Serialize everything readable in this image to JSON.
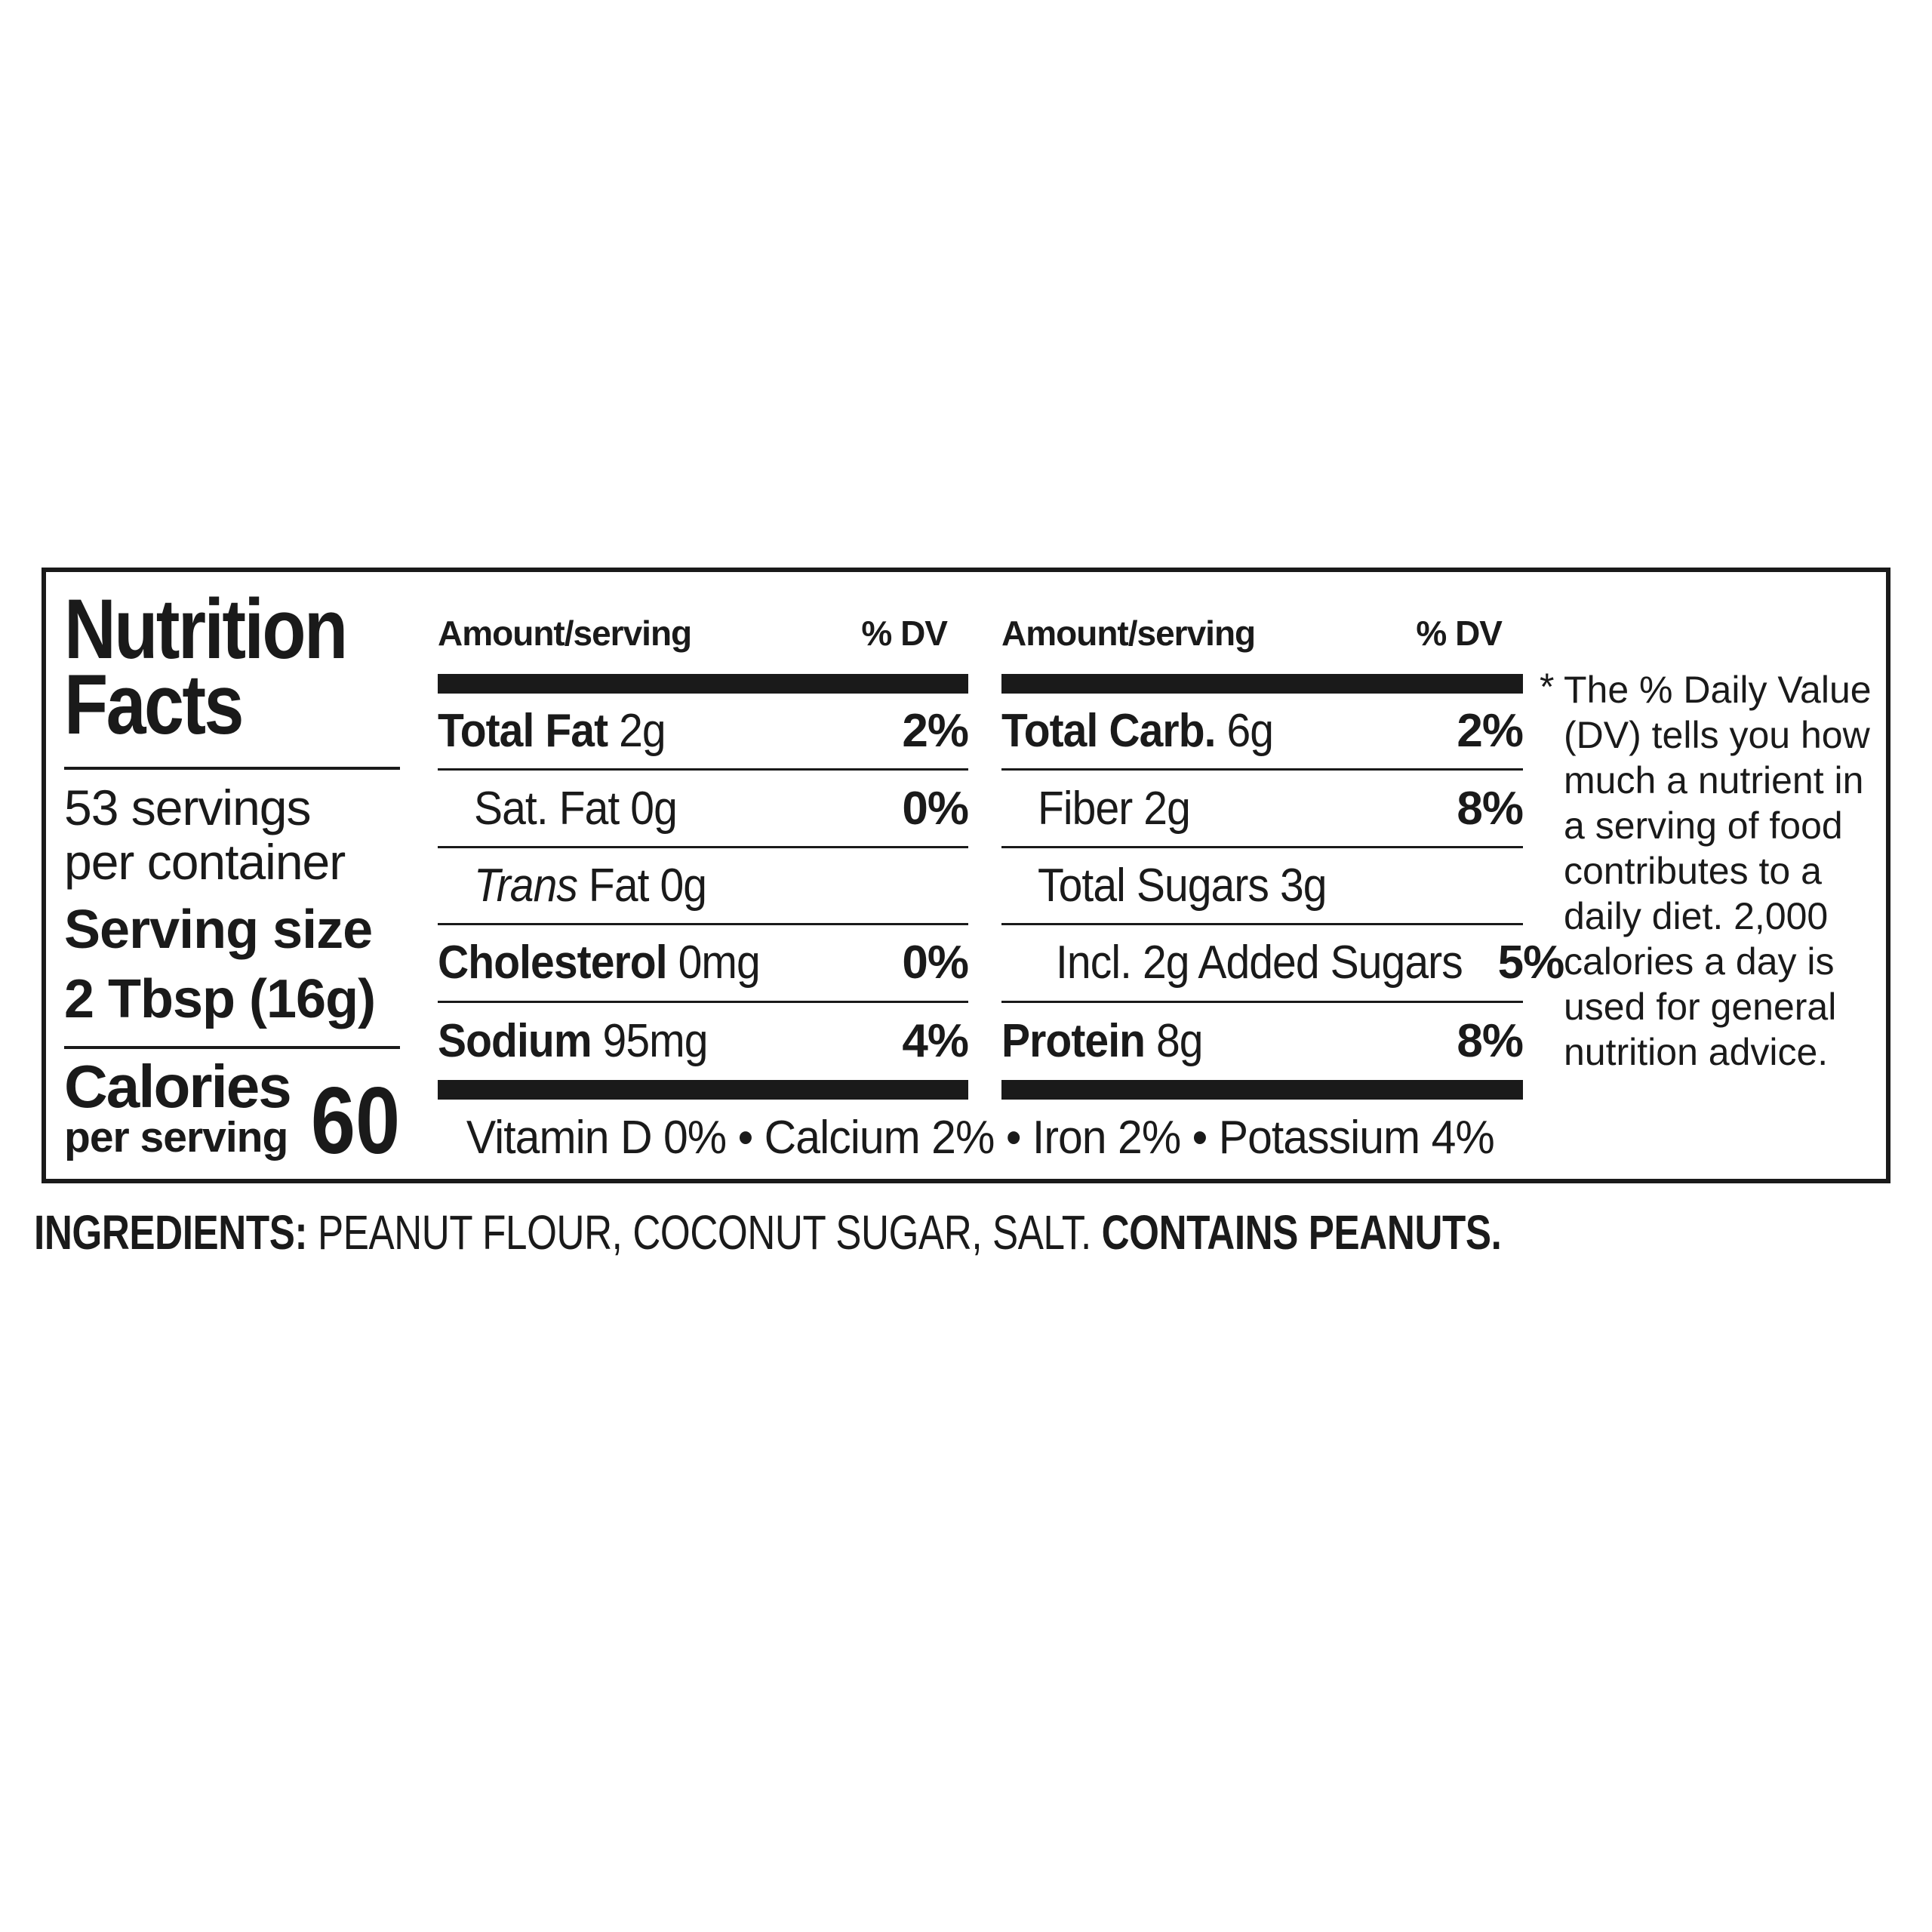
{
  "label": {
    "title_lines": [
      "Nutrition",
      "Facts"
    ],
    "servings_lines": [
      "53 servings",
      "per container"
    ],
    "serving_size_lines": [
      "Serving size",
      "2 Tbsp (16g)"
    ],
    "calories_label": "Calories",
    "calories_sub": "per serving",
    "calories_value": "60",
    "col_header_amount": "Amount/serving",
    "col_header_dv": "% DV",
    "columns": [
      {
        "rows": [
          {
            "name": "Total Fat",
            "value": "2g",
            "dv": "2%",
            "emphasis": true,
            "indent": 0
          },
          {
            "name": "Sat. Fat",
            "value": "0g",
            "dv": "0%",
            "emphasis": false,
            "indent": 1
          },
          {
            "italic": "Trans",
            "name": "Fat",
            "value": "0g",
            "dv": "",
            "emphasis": false,
            "indent": 1
          },
          {
            "name": "Cholesterol",
            "value": "0mg",
            "dv": "0%",
            "emphasis": true,
            "indent": 0
          },
          {
            "name": "Sodium",
            "value": "95mg",
            "dv": "4%",
            "emphasis": true,
            "indent": 0
          }
        ]
      },
      {
        "rows": [
          {
            "name": "Total Carb.",
            "value": "6g",
            "dv": "2%",
            "emphasis": true,
            "indent": 0
          },
          {
            "name": "Fiber",
            "value": "2g",
            "dv": "8%",
            "emphasis": false,
            "indent": 1
          },
          {
            "name": "Total Sugars",
            "value": "3g",
            "dv": "",
            "emphasis": false,
            "indent": 1
          },
          {
            "name": "Incl. 2g Added Sugars",
            "value": "",
            "dv": "5%",
            "emphasis": false,
            "indent": 2
          },
          {
            "name": "Protein",
            "value": "8g",
            "dv": "8%",
            "emphasis": true,
            "indent": 0
          }
        ]
      }
    ],
    "micronutrients": "Vitamin D 0% • Calcium 2% • Iron 2% • Potassium 4%",
    "footnote_marker": "*",
    "footnote_lines": [
      "The % Daily Value",
      "(DV) tells you how",
      "much a nutrient in",
      "a serving of food",
      "contributes to a",
      "daily diet. 2,000",
      "calories a day is",
      "used for general",
      "nutrition advice."
    ]
  },
  "ingredients": {
    "label": "INGREDIENTS:",
    "list": "PEANUT FLOUR, COCONUT SUGAR, SALT.",
    "allergen": "CONTAINS PEANUTS."
  }
}
